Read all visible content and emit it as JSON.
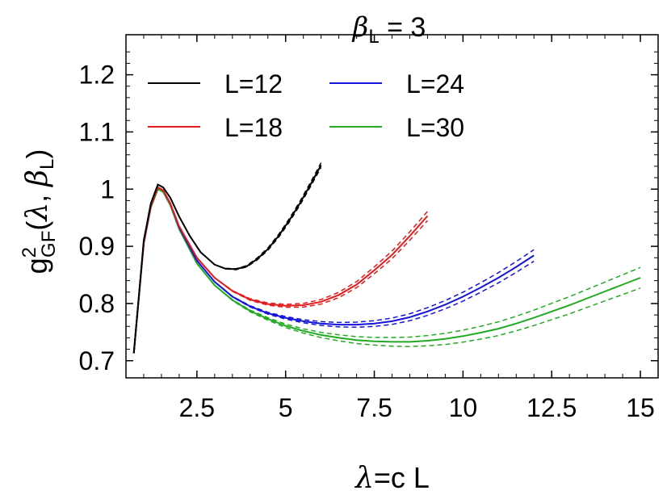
{
  "chart_data": {
    "type": "line",
    "title": {
      "symbol": "β",
      "sub": "L",
      "rest": " = 3"
    },
    "xlabel": {
      "symbol": "λ",
      "rest": "=c L"
    },
    "ylabel": {
      "base": "g",
      "sup": "2",
      "sub": "GF",
      "open": "(",
      "lambda": "λ",
      "comma": ", ",
      "beta": "β",
      "beta_sub": "L",
      "close": ")"
    },
    "xlim": [
      0.5,
      15.5
    ],
    "ylim": [
      0.67,
      1.27
    ],
    "xticks": [
      2.5,
      5,
      7.5,
      10,
      12.5,
      15
    ],
    "xtick_labels": [
      "2.5",
      "5",
      "7.5",
      "10",
      "12.5",
      "15"
    ],
    "yticks": [
      0.7,
      0.8,
      0.9,
      1.0,
      1.1,
      1.2
    ],
    "ytick_labels": [
      "0.7",
      "0.8",
      "0.9",
      "1",
      "1.1",
      "1.2"
    ],
    "grid": false,
    "legend_position": "top-left",
    "series": [
      {
        "name": "L=12",
        "color": "#000000",
        "x": [
          0.72,
          1.0,
          1.2,
          1.4,
          1.55,
          1.75,
          2.0,
          2.3,
          2.6,
          3.0,
          3.3,
          3.6,
          3.9,
          4.2,
          4.5,
          4.8,
          5.1,
          5.4,
          5.7,
          6.0
        ],
        "y": [
          0.713,
          0.91,
          0.975,
          1.008,
          1.003,
          0.985,
          0.952,
          0.918,
          0.89,
          0.868,
          0.861,
          0.86,
          0.865,
          0.878,
          0.895,
          0.918,
          0.945,
          0.975,
          1.008,
          1.042
        ],
        "band": 0.004
      },
      {
        "name": "L=18",
        "color": "#e41a1c",
        "x": [
          0.72,
          1.0,
          1.2,
          1.4,
          1.55,
          1.75,
          2.0,
          2.5,
          3.0,
          3.5,
          4.0,
          4.5,
          5.0,
          5.5,
          6.0,
          6.5,
          7.0,
          7.5,
          8.0,
          8.5,
          9.0
        ],
        "y": [
          0.713,
          0.905,
          0.97,
          1.003,
          0.998,
          0.975,
          0.935,
          0.88,
          0.845,
          0.822,
          0.807,
          0.799,
          0.796,
          0.797,
          0.803,
          0.815,
          0.833,
          0.858,
          0.885,
          0.918,
          0.953
        ],
        "band": 0.008
      },
      {
        "name": "L=24",
        "color": "#1414dc",
        "x": [
          0.72,
          1.0,
          1.2,
          1.4,
          1.55,
          1.75,
          2.0,
          2.5,
          3.0,
          3.5,
          4.0,
          4.5,
          5.0,
          5.5,
          6.0,
          6.5,
          7.0,
          7.5,
          8.0,
          8.5,
          9.0,
          9.5,
          10.0,
          10.5,
          11.0,
          11.5,
          12.0
        ],
        "y": [
          0.713,
          0.905,
          0.97,
          1.003,
          0.998,
          0.975,
          0.933,
          0.875,
          0.838,
          0.812,
          0.795,
          0.783,
          0.775,
          0.769,
          0.765,
          0.763,
          0.763,
          0.765,
          0.769,
          0.776,
          0.786,
          0.798,
          0.812,
          0.828,
          0.845,
          0.864,
          0.884
        ],
        "band": 0.01
      },
      {
        "name": "L=30",
        "color": "#22aa22",
        "x": [
          0.72,
          1.0,
          1.2,
          1.4,
          1.55,
          1.75,
          2.0,
          2.5,
          3.0,
          3.5,
          4.0,
          4.5,
          5.0,
          5.5,
          6.0,
          6.5,
          7.0,
          7.5,
          8.0,
          8.5,
          9.0,
          9.5,
          10.0,
          10.5,
          11.0,
          11.5,
          12.0,
          12.5,
          13.0,
          13.5,
          14.0,
          14.5,
          15.0
        ],
        "y": [
          0.713,
          0.905,
          0.968,
          1.0,
          0.995,
          0.972,
          0.93,
          0.87,
          0.832,
          0.806,
          0.787,
          0.773,
          0.761,
          0.752,
          0.745,
          0.74,
          0.736,
          0.734,
          0.733,
          0.733,
          0.735,
          0.738,
          0.743,
          0.749,
          0.756,
          0.765,
          0.775,
          0.786,
          0.797,
          0.809,
          0.821,
          0.833,
          0.845
        ],
        "band": 0.018
      }
    ]
  }
}
